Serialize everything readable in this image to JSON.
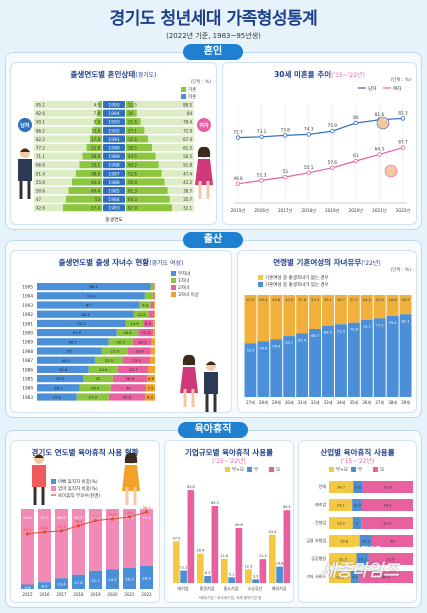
{
  "header": {
    "title": "경기도 청년세대 가족형성통계",
    "subtitle": "(2022년 기준, 1983~95년생)"
  },
  "sections": {
    "marriage": "혼인",
    "birth": "출산",
    "childcare": "육아휴직"
  },
  "colors": {
    "blue": "#4a8fd8",
    "green": "#8cc63e",
    "pink": "#e9609f",
    "orange": "#f3a229",
    "yellow": "#f5c842",
    "gray": "#9aa4ad",
    "navy": "#1d3f8c"
  },
  "p1": {
    "title": "출생연도별 혼인상태",
    "title_sub": "(경기도)",
    "unit": "(단위 : %)",
    "legend": [
      "기혼",
      "미혼"
    ],
    "years": [
      "1995",
      "1994",
      "1993",
      "1992",
      "1991",
      "1990",
      "1989",
      "1988",
      "1987",
      "1986",
      "1985",
      "1984",
      "1983"
    ],
    "male_married": [
      4.9,
      7.4,
      9.9,
      13.8,
      17.8,
      22.8,
      28.9,
      33.1,
      38.6,
      44.4,
      49.4,
      53.0,
      57.4
    ],
    "male_single": [
      95.1,
      92.6,
      90.1,
      86.2,
      82.2,
      77.2,
      71.1,
      66.9,
      61.4,
      55.6,
      50.6,
      47.0,
      42.6
    ],
    "female_married": [
      11.5,
      16.0,
      21.6,
      27.1,
      32.6,
      38.5,
      43.5,
      48.2,
      52.6,
      56.8,
      61.3,
      64.3,
      67.9
    ],
    "female_single": [
      88.5,
      84.0,
      78.4,
      72.9,
      67.4,
      61.5,
      56.5,
      51.8,
      47.4,
      43.2,
      38.7,
      35.7,
      32.1
    ],
    "xlabel": "출생연도",
    "male": "남자",
    "female": "여자"
  },
  "p2": {
    "title": "30세 미혼율 추이",
    "title_sub": "('15~'22년)",
    "unit": "(단위 : %)",
    "legend": [
      "남자",
      "여자"
    ],
    "years": [
      "2015년",
      "2016년",
      "2017년",
      "2018년",
      "2019년",
      "2020년",
      "2021년",
      "2022년"
    ],
    "male": [
      72.7,
      73.1,
      73.8,
      74.3,
      75.9,
      80.0,
      81.6,
      82.3
    ],
    "female": [
      49.6,
      51.3,
      53.0,
      55.1,
      57.6,
      61.0,
      64.3,
      67.7
    ]
  },
  "p3": {
    "title": "출생연도별 출생 자녀수 현황",
    "title_sub": "(경기도 여성)",
    "legend": [
      "무자녀",
      "1자녀",
      "2자녀",
      "3자녀 이상"
    ],
    "years": [
      "1995",
      "1994",
      "1993",
      "1992",
      "1991",
      "1990",
      "1989",
      "1988",
      "1987",
      "1986",
      "1985",
      "1984",
      "1983"
    ],
    "none": [
      96.2,
      91.4,
      87.0,
      82.1,
      75.1,
      67.5,
      60.7,
      55.0,
      49.1,
      43.8,
      39.3,
      36.1,
      33.6
    ],
    "one": [
      3.0,
      6.7,
      9.3,
      12.5,
      14.9,
      18.4,
      20.5,
      21.9,
      23.5,
      24.9,
      25.0,
      26.4,
      27.3
    ],
    "two": [
      0.6,
      1.5,
      3.0,
      4.6,
      8.3,
      12.5,
      16.1,
      19.6,
      23.3,
      25.7,
      28.9,
      30.0,
      30.6
    ],
    "three": [
      0.2,
      0.4,
      0.7,
      0.8,
      1.7,
      1.6,
      2.7,
      3.5,
      4.1,
      5.6,
      6.8,
      7.5,
      8.5
    ]
  },
  "p4": {
    "title": "연령별 기혼여성의 자녀유무",
    "title_sub": "('22년)",
    "unit": "(단위 : %)",
    "legend": [
      "기혼여성 중 출생자녀가 없는 경우",
      "기혼여성 중 출생자녀가 있는 경우"
    ],
    "ages": [
      "27세",
      "28세",
      "29세",
      "30세",
      "31세",
      "32세",
      "33세",
      "34세",
      "35세",
      "36세",
      "37세",
      "38세",
      "39세"
    ],
    "without": [
      47.5,
      45.4,
      43.6,
      40.3,
      37.6,
      33.3,
      30.1,
      28.7,
      27.2,
      24.3,
      22.9,
      20.6,
      18.9
    ],
    "with": [
      52.5,
      54.6,
      56.4,
      59.7,
      62.4,
      66.7,
      69.9,
      71.3,
      72.8,
      75.7,
      77.1,
      79.4,
      81.1
    ]
  },
  "p5": {
    "title": "경기도 연도별 육아휴직 사용 현황",
    "legend": [
      "아빠 휴직자 비중(%)",
      "엄마 휴직자 비중(%)",
      "육아휴직 부모수(천명)"
    ],
    "years": [
      "2015",
      "2016",
      "2017",
      "2018",
      "2019",
      "2020",
      "2021",
      "2022"
    ],
    "father": [
      5.6,
      8.5,
      13.4,
      17.8,
      22.7,
      24.5,
      26.3,
      28.9
    ],
    "mother": [
      94.4,
      91.5,
      86.6,
      82.2,
      77.3,
      75.5,
      73.7,
      71.1
    ],
    "parents": [
      23.2,
      24.4,
      25.1,
      28.3,
      31.5,
      32.6,
      33.8,
      36.9
    ]
  },
  "p6": {
    "title": "기업규모별 육아휴직 사용률",
    "title_sub": "('15~'22년)",
    "legend": [
      "부+모",
      "부",
      "모"
    ],
    "cats": [
      "대기업",
      "중견기업",
      "중소기업",
      "소상공인",
      "해외기업"
    ],
    "both": [
      37.5,
      26.4,
      21.8,
      12.3,
      43.4
    ],
    "father": [
      11.2,
      6.3,
      5.1,
      3.3,
      14.8
    ],
    "mother": [
      83.6,
      69.3,
      49.6,
      21.5,
      65.5
    ],
    "note": "*해외기업 : 외국계기업, 국제 합작기업 등"
  },
  "p7": {
    "title": "산업별 육아휴직 사용률",
    "title_sub": "('15~'22년)",
    "legend": [
      "부+모",
      "부",
      "모"
    ],
    "cats": [
      "전체",
      "제조업",
      "건설업",
      "금융 보험업",
      "공공행정",
      "기타 서비스"
    ],
    "both": [
      24.7,
      24.2,
      13.9,
      50.8,
      32.5,
      12.1
    ],
    "father": [
      9.6,
      10.2,
      5.0,
      20.3,
      14.1,
      4.4
    ],
    "mother": [
      51.4,
      53.3,
      30.3,
      68.0,
      52.6,
      30.1
    ]
  },
  "watermark": {
    "brand": "NEWS",
    "name": "세종타임즈"
  }
}
